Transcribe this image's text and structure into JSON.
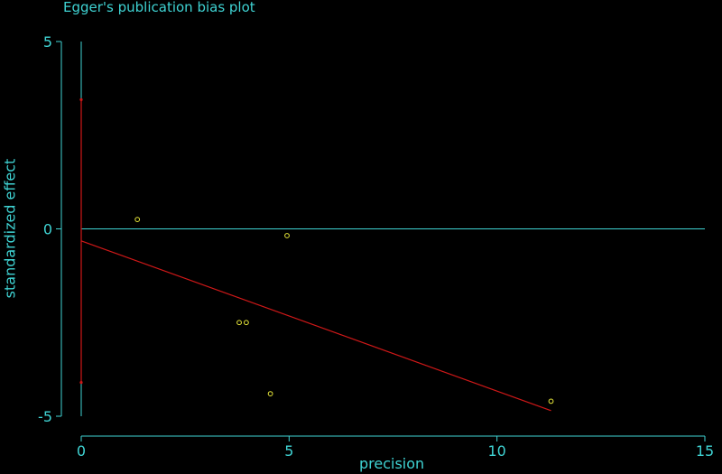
{
  "chart_data": {
    "type": "scatter",
    "title": "Egger's publication bias plot",
    "xlabel": "precision",
    "ylabel": "standardized effect",
    "xlim": [
      0,
      15
    ],
    "ylim": [
      -5,
      5
    ],
    "xticks": [
      0,
      5,
      10,
      15
    ],
    "yticks": [
      -5,
      0,
      5
    ],
    "grid": false,
    "points": [
      {
        "x": 1.35,
        "y": 0.25
      },
      {
        "x": 4.95,
        "y": -0.18
      },
      {
        "x": 3.8,
        "y": -2.5
      },
      {
        "x": 3.97,
        "y": -2.5
      },
      {
        "x": 4.55,
        "y": -4.4
      },
      {
        "x": 11.3,
        "y": -4.6
      }
    ],
    "regression_line": {
      "x": [
        0,
        11.3
      ],
      "y": [
        -0.32,
        -4.85
      ]
    },
    "intercept_ci": {
      "x": 0,
      "y": [
        -4.1,
        3.45
      ]
    },
    "reference_line_y": 0,
    "colors": {
      "background": "#000000",
      "axes": "#3fd3d3",
      "points": "#e8e83a",
      "regression": "#d01818"
    }
  }
}
